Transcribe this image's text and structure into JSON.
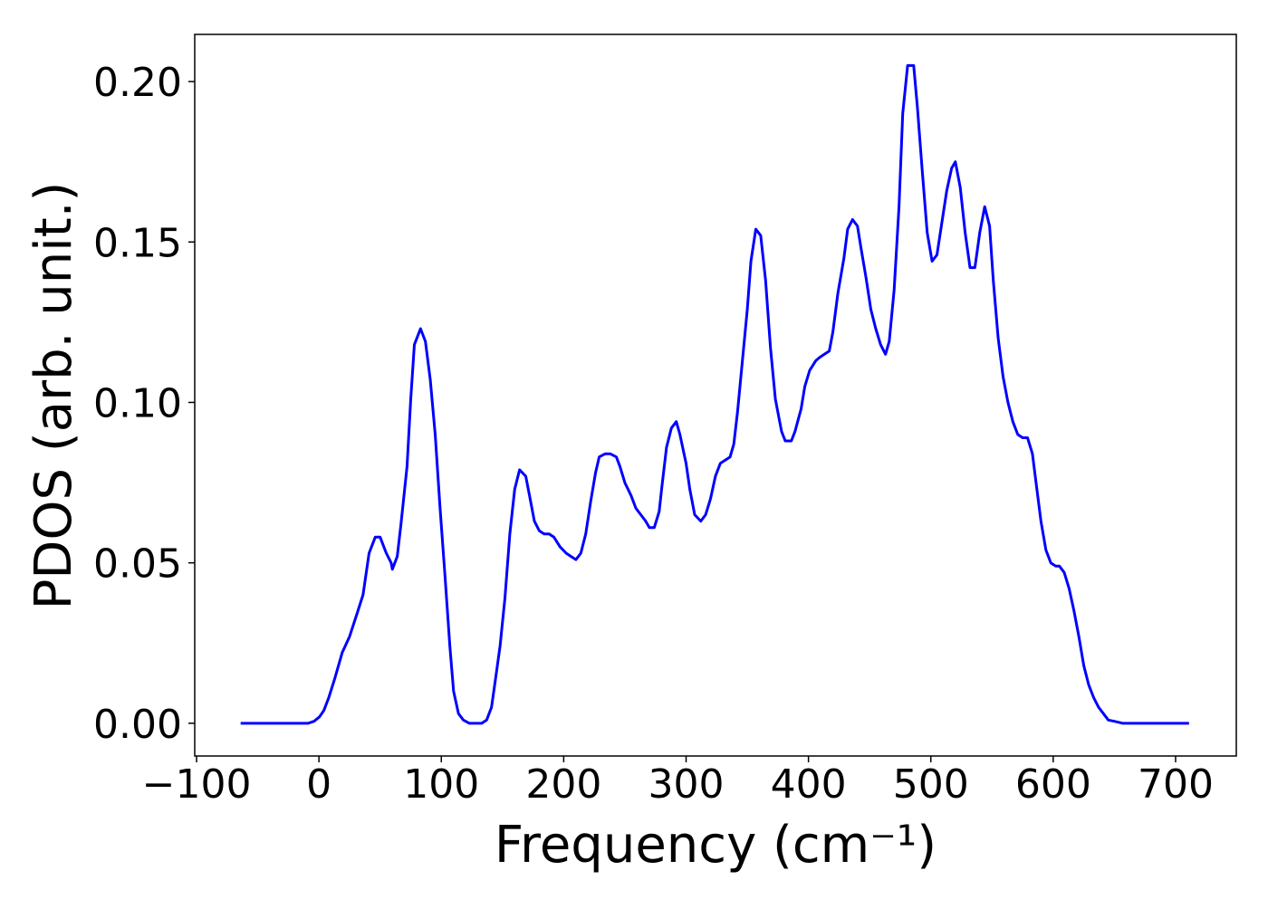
{
  "chart_data": {
    "type": "line",
    "xlabel": "Frequency (cm⁻¹)",
    "ylabel": "PDOS (arb. unit.)",
    "xlim": [
      -101.5,
      749.6
    ],
    "ylim": [
      -0.0102,
      0.2147
    ],
    "xticks": [
      {
        "value": -100,
        "label": "−100"
      },
      0,
      100,
      200,
      300,
      400,
      500,
      600,
      700
    ],
    "yticks": [
      {
        "value": 0,
        "label": "0.00"
      },
      {
        "value": 0.05,
        "label": "0.05"
      },
      {
        "value": 0.1,
        "label": "0.10"
      },
      {
        "value": 0.15,
        "label": "0.15"
      },
      {
        "value": 0.2,
        "label": "0.20"
      }
    ],
    "series": [
      {
        "color": "#0000ff",
        "x": [
          -64,
          -9,
          -4,
          0.4,
          4,
          8,
          13,
          19,
          25,
          31,
          36,
          41,
          46,
          50,
          55,
          59,
          60,
          64,
          67,
          72,
          75,
          78,
          83,
          87,
          91,
          95,
          99,
          103,
          107,
          110,
          114,
          118,
          123,
          133,
          137,
          141,
          144,
          148,
          152,
          156,
          160,
          164,
          169,
          172,
          176,
          180,
          184,
          188,
          192,
          197,
          202,
          206,
          210,
          214,
          218,
          222,
          226,
          229,
          234,
          238,
          243,
          246,
          250,
          255,
          259,
          263,
          267,
          270,
          274,
          278,
          280,
          284,
          288,
          292,
          295,
          300,
          303,
          307,
          312,
          316,
          320,
          324,
          328,
          332,
          336,
          339,
          342,
          346,
          350,
          353,
          357,
          361,
          365,
          369,
          373,
          378,
          381,
          386,
          389,
          394,
          397,
          401,
          406,
          409,
          413,
          417,
          420,
          424,
          429,
          432,
          436,
          440,
          443,
          447,
          451,
          455,
          459,
          463,
          466,
          470,
          474,
          477,
          481,
          486,
          489,
          493,
          497,
          501,
          505,
          509,
          513,
          517,
          520,
          524,
          528,
          532,
          536,
          540,
          544,
          548,
          551,
          555,
          559,
          563,
          567,
          571,
          575,
          579,
          583,
          586,
          590,
          594,
          598,
          602,
          605,
          609,
          613,
          617,
          621,
          625,
          629,
          633,
          637,
          641,
          645,
          650,
          657,
          711
        ],
        "values": [
          0,
          0,
          0.0006,
          0.002,
          0.004,
          0.008,
          0.014,
          0.022,
          0.027,
          0.034,
          0.04,
          0.053,
          0.058,
          0.058,
          0.053,
          0.05,
          0.048,
          0.052,
          0.062,
          0.08,
          0.101,
          0.118,
          0.123,
          0.119,
          0.107,
          0.09,
          0.067,
          0.046,
          0.024,
          0.01,
          0.003,
          0.001,
          0,
          0,
          0.001,
          0.005,
          0.013,
          0.024,
          0.039,
          0.059,
          0.073,
          0.079,
          0.077,
          0.071,
          0.063,
          0.06,
          0.059,
          0.059,
          0.058,
          0.055,
          0.053,
          0.052,
          0.051,
          0.053,
          0.059,
          0.069,
          0.078,
          0.083,
          0.084,
          0.084,
          0.083,
          0.08,
          0.075,
          0.071,
          0.067,
          0.065,
          0.063,
          0.061,
          0.061,
          0.066,
          0.073,
          0.086,
          0.092,
          0.094,
          0.09,
          0.081,
          0.073,
          0.065,
          0.063,
          0.065,
          0.07,
          0.077,
          0.081,
          0.082,
          0.083,
          0.087,
          0.097,
          0.113,
          0.129,
          0.144,
          0.154,
          0.152,
          0.138,
          0.117,
          0.101,
          0.091,
          0.088,
          0.088,
          0.091,
          0.098,
          0.105,
          0.11,
          0.113,
          0.114,
          0.115,
          0.116,
          0.122,
          0.134,
          0.145,
          0.154,
          0.157,
          0.155,
          0.148,
          0.139,
          0.129,
          0.123,
          0.118,
          0.115,
          0.119,
          0.135,
          0.161,
          0.19,
          0.205,
          0.205,
          0.192,
          0.172,
          0.153,
          0.144,
          0.146,
          0.156,
          0.166,
          0.173,
          0.175,
          0.167,
          0.153,
          0.142,
          0.142,
          0.153,
          0.161,
          0.155,
          0.138,
          0.12,
          0.108,
          0.1,
          0.094,
          0.09,
          0.089,
          0.089,
          0.084,
          0.075,
          0.063,
          0.054,
          0.05,
          0.049,
          0.049,
          0.047,
          0.042,
          0.035,
          0.027,
          0.018,
          0.012,
          0.008,
          0.005,
          0.003,
          0.001,
          0.0006,
          0,
          0
        ]
      }
    ]
  }
}
